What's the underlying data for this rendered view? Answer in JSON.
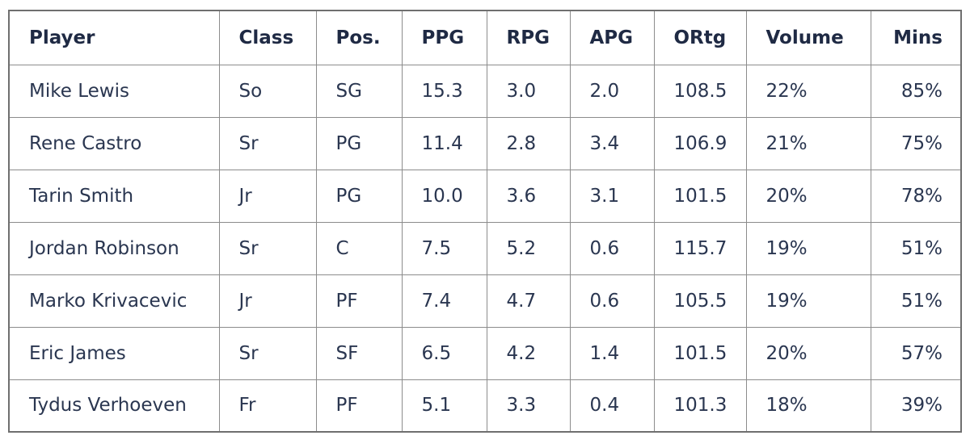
{
  "table": {
    "headers": [
      "Player",
      "Class",
      "Pos.",
      "PPG",
      "RPG",
      "APG",
      "ORtg",
      "Volume",
      "Mins"
    ],
    "rows": [
      [
        "Mike Lewis",
        "So",
        "SG",
        "15.3",
        "3.0",
        "2.0",
        "108.5",
        "22%",
        "85%"
      ],
      [
        "Rene Castro",
        "Sr",
        "PG",
        "11.4",
        "2.8",
        "3.4",
        "106.9",
        "21%",
        "75%"
      ],
      [
        "Tarin Smith",
        "Jr",
        "PG",
        "10.0",
        "3.6",
        "3.1",
        "101.5",
        "20%",
        "78%"
      ],
      [
        "Jordan Robinson",
        "Sr",
        "C",
        "7.5",
        "5.2",
        "0.6",
        "115.7",
        "19%",
        "51%"
      ],
      [
        "Marko Krivacevic",
        "Jr",
        "PF",
        "7.4",
        "4.7",
        "0.6",
        "105.5",
        "19%",
        "51%"
      ],
      [
        "Eric James",
        "Sr",
        "SF",
        "6.5",
        "4.2",
        "1.4",
        "101.5",
        "20%",
        "57%"
      ],
      [
        "Tydus Verhoeven",
        "Fr",
        "PF",
        "5.1",
        "3.3",
        "0.4",
        "101.3",
        "18%",
        "39%"
      ]
    ]
  }
}
